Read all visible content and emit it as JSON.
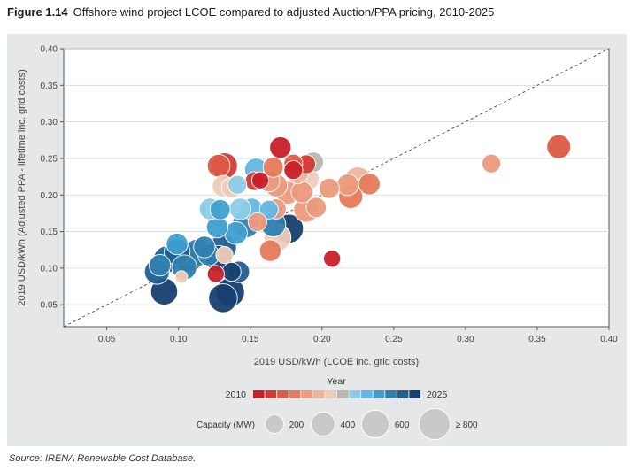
{
  "figure": {
    "number": "Figure 1.14",
    "title": "Offshore wind project LCOE compared to adjusted Auction/PPA pricing, 2010-2025"
  },
  "source": "Source: IRENA Renewable Cost Database.",
  "colors": {
    "panel_bg": "#e6e7e8",
    "plot_bg": "#ffffff",
    "year_scale": [
      "#c8202a",
      "#d33a33",
      "#dd5a45",
      "#e57a5c",
      "#eb9a7c",
      "#efb59c",
      "#f0cbb7",
      "#b9b7ae",
      "#8ccbe8",
      "#63b7e2",
      "#3f9fcf",
      "#2f7fb0",
      "#215f91",
      "#173f70"
    ]
  },
  "chart_data": {
    "type": "scatter",
    "xlabel": "2019 USD/kWh (LCOE inc. grid costs)",
    "ylabel": "2019 USD/kWh (Adjusted PPA - lifetime inc. grid costs)",
    "xlim": [
      0.02,
      0.4
    ],
    "ylim": [
      0.02,
      0.4
    ],
    "xticks": [
      0.05,
      0.1,
      0.15,
      0.2,
      0.25,
      0.3,
      0.35,
      0.4
    ],
    "yticks": [
      0.05,
      0.1,
      0.15,
      0.2,
      0.25,
      0.3,
      0.35,
      0.4
    ],
    "xtick_labels": [
      "0.05",
      "0.10",
      "0.15",
      "0.20",
      "0.25",
      "0.30",
      "0.35",
      "0.40"
    ],
    "ytick_labels": [
      "0.05",
      "0.10",
      "0.15",
      "0.20",
      "0.25",
      "0.30",
      "0.35",
      "0.40"
    ],
    "reference_line": "y = x (dashed)",
    "grid": "horizontal",
    "color_legend": {
      "title": "Year",
      "start_label": "2010",
      "end_label": "2025",
      "years": [
        2010,
        2025
      ]
    },
    "size_legend": {
      "title": "Capacity (MW)",
      "entries": [
        {
          "label": "200",
          "mw": 200
        },
        {
          "label": "400",
          "mw": 400
        },
        {
          "label": "600",
          "mw": 600
        },
        {
          "label": "≥ 800",
          "mw": 800
        }
      ]
    },
    "points": [
      {
        "x": 0.365,
        "y": 0.266,
        "year": 2012,
        "mw": 400
      },
      {
        "x": 0.318,
        "y": 0.243,
        "year": 2015,
        "mw": 200
      },
      {
        "x": 0.233,
        "y": 0.215,
        "year": 2014,
        "mw": 300
      },
      {
        "x": 0.225,
        "y": 0.22,
        "year": 2016,
        "mw": 550
      },
      {
        "x": 0.218,
        "y": 0.214,
        "year": 2015,
        "mw": 300
      },
      {
        "x": 0.22,
        "y": 0.198,
        "year": 2013,
        "mw": 400
      },
      {
        "x": 0.207,
        "y": 0.113,
        "year": 2010,
        "mw": 150
      },
      {
        "x": 0.205,
        "y": 0.209,
        "year": 2015,
        "mw": 250
      },
      {
        "x": 0.196,
        "y": 0.183,
        "year": 2015,
        "mw": 250
      },
      {
        "x": 0.194,
        "y": 0.245,
        "year": 2018,
        "mw": 250
      },
      {
        "x": 0.189,
        "y": 0.18,
        "year": 2015,
        "mw": 450
      },
      {
        "x": 0.19,
        "y": 0.222,
        "year": 2017,
        "mw": 350
      },
      {
        "x": 0.189,
        "y": 0.242,
        "year": 2011,
        "mw": 200
      },
      {
        "x": 0.186,
        "y": 0.204,
        "year": 2015,
        "mw": 300
      },
      {
        "x": 0.183,
        "y": 0.23,
        "year": 2016,
        "mw": 300
      },
      {
        "x": 0.18,
        "y": 0.243,
        "year": 2012,
        "mw": 200
      },
      {
        "x": 0.18,
        "y": 0.234,
        "year": 2010,
        "mw": 200
      },
      {
        "x": 0.176,
        "y": 0.203,
        "year": 2015,
        "mw": 350
      },
      {
        "x": 0.171,
        "y": 0.265,
        "year": 2010,
        "mw": 300
      },
      {
        "x": 0.168,
        "y": 0.213,
        "year": 2015,
        "mw": 350
      },
      {
        "x": 0.166,
        "y": 0.238,
        "year": 2013,
        "mw": 250
      },
      {
        "x": 0.163,
        "y": 0.219,
        "year": 2015,
        "mw": 300
      },
      {
        "x": 0.157,
        "y": 0.22,
        "year": 2010,
        "mw": 150
      },
      {
        "x": 0.153,
        "y": 0.219,
        "year": 2011,
        "mw": 200
      },
      {
        "x": 0.168,
        "y": 0.181,
        "year": 2015,
        "mw": 250
      },
      {
        "x": 0.163,
        "y": 0.18,
        "year": 2020,
        "mw": 200
      },
      {
        "x": 0.177,
        "y": 0.154,
        "year": 2025,
        "mw": 650
      },
      {
        "x": 0.169,
        "y": 0.142,
        "year": 2017,
        "mw": 550
      },
      {
        "x": 0.164,
        "y": 0.124,
        "year": 2013,
        "mw": 300
      },
      {
        "x": 0.166,
        "y": 0.16,
        "year": 2023,
        "mw": 450
      },
      {
        "x": 0.155,
        "y": 0.163,
        "year": 2015,
        "mw": 200
      },
      {
        "x": 0.154,
        "y": 0.235,
        "year": 2020,
        "mw": 350
      },
      {
        "x": 0.151,
        "y": 0.181,
        "year": 2020,
        "mw": 300
      },
      {
        "x": 0.147,
        "y": 0.16,
        "year": 2023,
        "mw": 550
      },
      {
        "x": 0.143,
        "y": 0.181,
        "year": 2019,
        "mw": 300
      },
      {
        "x": 0.141,
        "y": 0.214,
        "year": 2019,
        "mw": 200
      },
      {
        "x": 0.14,
        "y": 0.148,
        "year": 2022,
        "mw": 350
      },
      {
        "x": 0.137,
        "y": 0.21,
        "year": 2017,
        "mw": 250
      },
      {
        "x": 0.132,
        "y": 0.24,
        "year": 2011,
        "mw": 500
      },
      {
        "x": 0.128,
        "y": 0.24,
        "year": 2012,
        "mw": 350
      },
      {
        "x": 0.131,
        "y": 0.212,
        "year": 2017,
        "mw": 300
      },
      {
        "x": 0.129,
        "y": 0.18,
        "year": 2021,
        "mw": 250
      },
      {
        "x": 0.127,
        "y": 0.156,
        "year": 2021,
        "mw": 300
      },
      {
        "x": 0.122,
        "y": 0.181,
        "year": 2019,
        "mw": 300
      },
      {
        "x": 0.131,
        "y": 0.128,
        "year": 2024,
        "mw": 550
      },
      {
        "x": 0.128,
        "y": 0.113,
        "year": 2025,
        "mw": 500
      },
      {
        "x": 0.132,
        "y": 0.118,
        "year": 2017,
        "mw": 150
      },
      {
        "x": 0.126,
        "y": 0.092,
        "year": 2010,
        "mw": 150
      },
      {
        "x": 0.121,
        "y": 0.118,
        "year": 2023,
        "mw": 300
      },
      {
        "x": 0.118,
        "y": 0.129,
        "year": 2023,
        "mw": 300
      },
      {
        "x": 0.113,
        "y": 0.121,
        "year": 2023,
        "mw": 550
      },
      {
        "x": 0.107,
        "y": 0.115,
        "year": 2024,
        "mw": 700
      },
      {
        "x": 0.104,
        "y": 0.101,
        "year": 2023,
        "mw": 450
      },
      {
        "x": 0.102,
        "y": 0.088,
        "year": 2017,
        "mw": 50
      },
      {
        "x": 0.099,
        "y": 0.122,
        "year": 2024,
        "mw": 500
      },
      {
        "x": 0.099,
        "y": 0.133,
        "year": 2021,
        "mw": 300
      },
      {
        "x": 0.092,
        "y": 0.112,
        "year": 2024,
        "mw": 550
      },
      {
        "x": 0.09,
        "y": 0.068,
        "year": 2025,
        "mw": 550
      },
      {
        "x": 0.085,
        "y": 0.095,
        "year": 2024,
        "mw": 450
      },
      {
        "x": 0.087,
        "y": 0.104,
        "year": 2023,
        "mw": 300
      },
      {
        "x": 0.137,
        "y": 0.095,
        "year": 2025,
        "mw": 200
      },
      {
        "x": 0.142,
        "y": 0.095,
        "year": 2024,
        "mw": 300
      },
      {
        "x": 0.136,
        "y": 0.067,
        "year": 2025,
        "mw": 650
      },
      {
        "x": 0.131,
        "y": 0.059,
        "year": 2025,
        "mw": 650
      }
    ]
  }
}
